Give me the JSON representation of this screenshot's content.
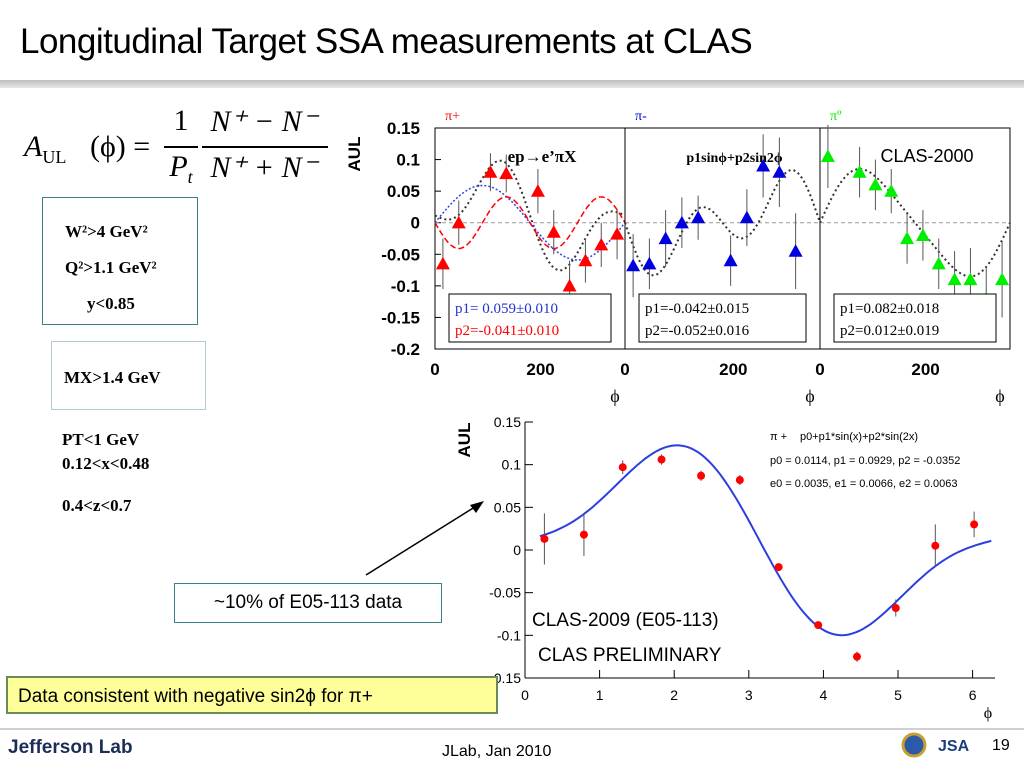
{
  "slide": {
    "title": "Longitudinal Target SSA measurements at CLAS",
    "footer": "JLab, Jan 2010",
    "page_number": "19",
    "logo_text": "Jefferson Lab",
    "formula_lhs": "A",
    "formula_lhs_sub": "UL",
    "formula_arg": "(ϕ) =",
    "formula_frac1_num": "1",
    "formula_frac1_den": "P",
    "formula_frac1_den_sub": "t",
    "formula_frac2_num": "N⁺ − N⁻",
    "formula_frac2_den": "N⁺ + N⁻",
    "cuts_box1": [
      "W²>4 GeV²",
      "Q²>1.1 GeV²",
      "y<0.85"
    ],
    "cuts_box2": "MX>1.4 GeV",
    "cuts_free": [
      "PT<1 GeV",
      "0.12<x<0.48",
      "0.4<z<0.7"
    ],
    "arrow_note": "~10% of E05-113 data",
    "conclusion": "Data consistent with negative sin2ϕ for π+"
  },
  "colors": {
    "red": "#ff0000",
    "blue": "#0000dd",
    "green": "#00ee00",
    "fit_blue": "#2b3fe0",
    "conclusion_bg": "#ffff99"
  },
  "chart_data": [
    {
      "type": "scatter",
      "panel": "top",
      "ylabel": "AUL",
      "xlabel": "ϕ",
      "ylim": [
        -0.2,
        0.15
      ],
      "yticks": [
        "0.15",
        "0.1",
        "0.05",
        "0",
        "-0.05",
        "-0.1",
        "-0.15",
        "-0.2"
      ],
      "xticks": [
        "0",
        "200"
      ],
      "series": [
        {
          "name": "π+",
          "color": "#ff0000",
          "header": "ep→e’πX",
          "fit_label_1": "p1= 0.059±0.010",
          "fit_label_2": "p2=-0.041±0.010",
          "x": [
            15,
            45,
            105,
            135,
            195,
            225,
            255,
            285,
            315,
            345
          ],
          "y": [
            -0.065,
            0.0,
            0.08,
            0.078,
            0.05,
            -0.015,
            -0.1,
            -0.06,
            -0.035,
            -0.018
          ],
          "err": [
            0.04,
            0.035,
            0.03,
            0.03,
            0.035,
            0.035,
            0.04,
            0.035,
            0.035,
            0.04
          ]
        },
        {
          "name": "π-",
          "color": "#0000dd",
          "header": "p1sinϕ+p2sin2ϕ",
          "fit_label_1": "p1=-0.042±0.015",
          "fit_label_2": "p2=-0.052±0.016",
          "x": [
            15,
            45,
            75,
            105,
            135,
            195,
            225,
            255,
            285,
            315
          ],
          "y": [
            -0.068,
            -0.065,
            -0.025,
            0.0,
            0.008,
            -0.06,
            0.008,
            0.09,
            0.08,
            -0.045
          ],
          "err": [
            0.05,
            0.04,
            0.045,
            0.04,
            0.035,
            0.04,
            0.045,
            0.05,
            0.055,
            0.06
          ]
        },
        {
          "name": "πº",
          "color": "#00ee00",
          "header": "CLAS-2000",
          "fit_label_1": "p1=0.082±0.018",
          "fit_label_2": "p2=0.012±0.019",
          "x": [
            15,
            75,
            105,
            135,
            165,
            195,
            225,
            255,
            285,
            315,
            345
          ],
          "y": [
            0.105,
            0.08,
            0.06,
            0.05,
            -0.025,
            -0.02,
            -0.065,
            -0.09,
            -0.09,
            -0.12,
            -0.09
          ],
          "err": [
            0.05,
            0.04,
            0.04,
            0.035,
            0.04,
            0.04,
            0.04,
            0.045,
            0.05,
            0.05,
            0.06
          ]
        }
      ]
    },
    {
      "type": "scatter",
      "panel": "bottom",
      "ylabel": "AUL",
      "xlabel": "ϕ",
      "xlim": [
        0,
        6.3
      ],
      "ylim": [
        -0.15,
        0.15
      ],
      "yticks": [
        "0.15",
        "0.1",
        "0.05",
        "0",
        "-0.05",
        "-0.1",
        "-0.15"
      ],
      "xticks": [
        "0",
        "1",
        "2",
        "3",
        "4",
        "5",
        "6"
      ],
      "legend_series": "π +",
      "legend_fit": "p0+p1*sin(x)+p2*sin(2x)",
      "fit_params_1": "p0 = 0.0114, p1 = 0.0929, p2 = -0.0352",
      "fit_params_2": "e0 = 0.0035, e1 = 0.0066, e2 = 0.0063",
      "label_1": "CLAS-2009 (E05-113)",
      "label_2": "CLAS PRELIMINARY",
      "fit": {
        "p0": 0.0114,
        "p1": 0.0929,
        "p2": -0.0352
      },
      "series": [
        {
          "name": "π +",
          "color": "#ff0000",
          "x": [
            0.26,
            0.79,
            1.31,
            1.83,
            2.36,
            2.88,
            3.4,
            3.93,
            4.45,
            4.97,
            5.5,
            6.02
          ],
          "y": [
            0.013,
            0.018,
            0.097,
            0.106,
            0.087,
            0.082,
            -0.02,
            -0.088,
            -0.125,
            -0.068,
            0.005,
            0.03
          ],
          "err": [
            0.03,
            0.025,
            0.008,
            0.006,
            0.006,
            0.006,
            0.004,
            0.004,
            0.006,
            0.01,
            0.025,
            0.015
          ]
        }
      ]
    }
  ]
}
